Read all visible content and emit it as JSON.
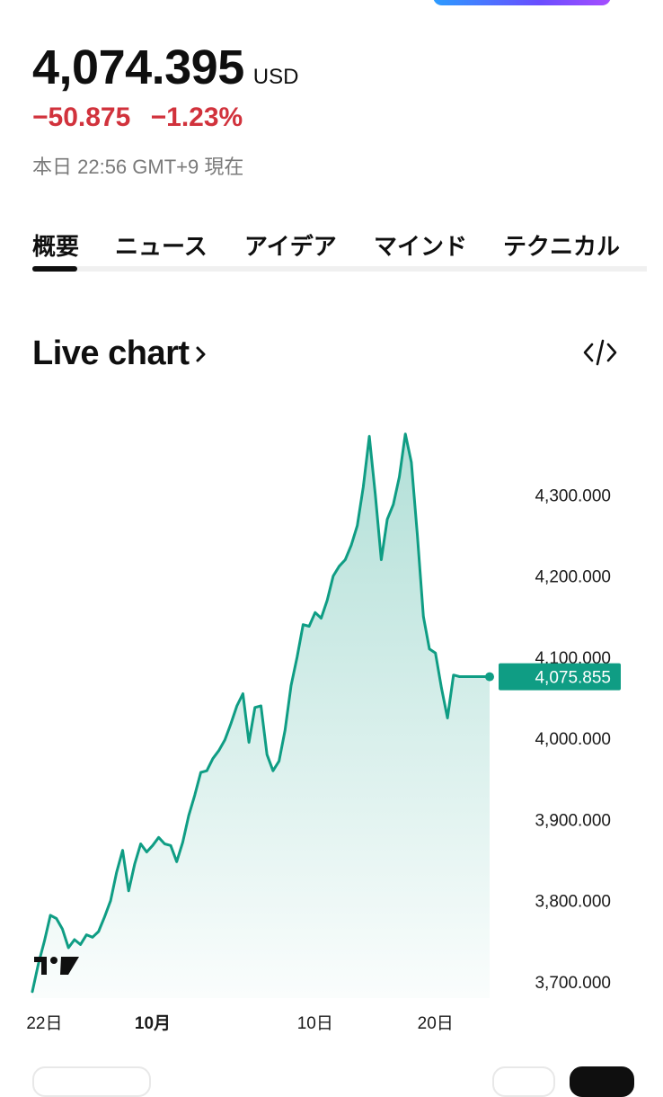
{
  "quote": {
    "price": "4,074.395",
    "currency": "USD",
    "change": "−50.875",
    "change_pct": "−1.23%",
    "as_of": "本日 22:56 GMT+9 現在"
  },
  "tabs": [
    {
      "label": "概要",
      "active": true
    },
    {
      "label": "ニュース",
      "active": false
    },
    {
      "label": "アイデア",
      "active": false
    },
    {
      "label": "マインド",
      "active": false
    },
    {
      "label": "テクニカル",
      "active": false
    }
  ],
  "section": {
    "title": "Live chart",
    "title_icon": "chevron-right-icon",
    "embed_icon": "code-icon"
  },
  "colors": {
    "accent": "#0f9d84",
    "negative": "#d1323c",
    "label_bg": "#0f9d84"
  },
  "chart_data": {
    "type": "area",
    "ylim": [
      3680,
      4400
    ],
    "yticks": [
      3700,
      3800,
      3900,
      4000,
      4100,
      4200,
      4300
    ],
    "ytick_labels": [
      "3,700.000",
      "3,800.000",
      "3,900.000",
      "4,000.000",
      "4,100.000",
      "4,200.000",
      "4,300.000"
    ],
    "xlim": [
      0,
      38
    ],
    "xticks": [
      {
        "x": 1,
        "label": "22日",
        "bold": false
      },
      {
        "x": 10,
        "label": "10月",
        "bold": true
      },
      {
        "x": 23.5,
        "label": "10日",
        "bold": false
      },
      {
        "x": 33.5,
        "label": "20日",
        "bold": false
      }
    ],
    "last_value_label": "4,075.855",
    "last_value": 4075.855,
    "grid": false,
    "x": [
      0,
      0.5,
      1,
      1.5,
      2,
      2.5,
      3,
      3.5,
      4,
      4.5,
      5,
      5.5,
      6,
      6.5,
      7,
      7.5,
      8,
      8.5,
      9,
      9.5,
      10,
      10.5,
      11,
      11.5,
      12,
      12.5,
      13,
      13.5,
      14,
      14.5,
      15,
      15.5,
      16,
      16.5,
      17,
      17.5,
      18,
      18.5,
      19,
      19.5,
      20,
      20.5,
      21,
      21.5,
      22,
      22.5,
      23,
      23.5,
      24,
      24.5,
      25,
      25.5,
      26,
      26.5,
      27,
      27.5,
      28,
      28.5,
      29,
      29.5,
      30,
      30.5,
      31,
      31.5,
      32,
      32.5,
      33,
      33.5,
      34,
      34.5,
      35,
      35.5,
      36,
      36.5,
      37,
      37.5,
      38
    ],
    "y": [
      3688,
      3722,
      3750,
      3782,
      3778,
      3765,
      3742,
      3752,
      3746,
      3758,
      3755,
      3762,
      3780,
      3800,
      3835,
      3862,
      3812,
      3845,
      3870,
      3860,
      3868,
      3878,
      3870,
      3868,
      3848,
      3872,
      3905,
      3930,
      3958,
      3960,
      3975,
      3985,
      3998,
      4018,
      4040,
      4055,
      3995,
      4038,
      4040,
      3980,
      3960,
      3972,
      4010,
      4065,
      4100,
      4140,
      4138,
      4155,
      4148,
      4170,
      4200,
      4212,
      4220,
      4238,
      4262,
      4310,
      4372,
      4300,
      4220,
      4270,
      4288,
      4322,
      4375,
      4340,
      4250,
      4150,
      4110,
      4105,
      4062,
      4025,
      4078,
      4076,
      4076,
      4076,
      4076,
      4076,
      4076
    ]
  }
}
